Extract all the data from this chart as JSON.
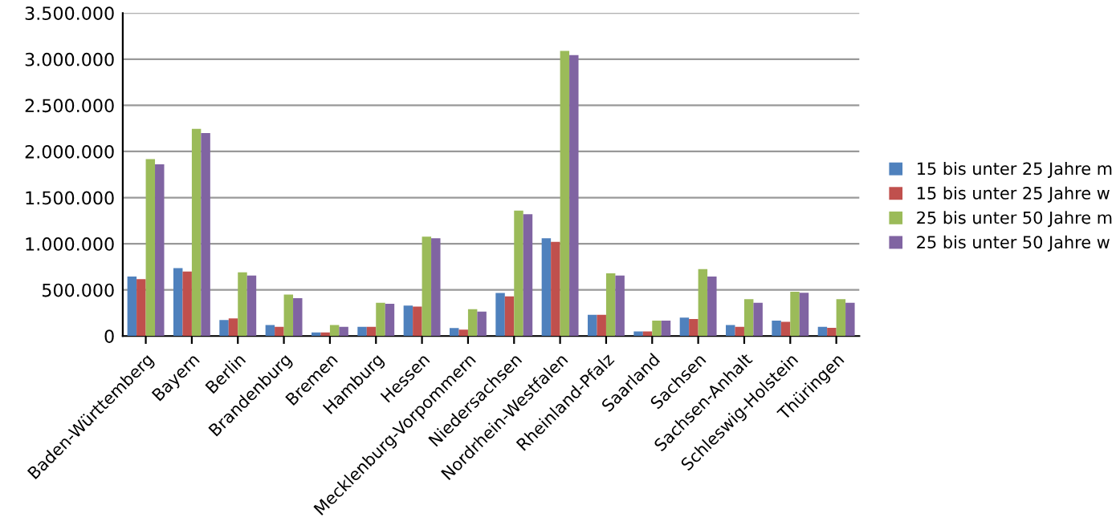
{
  "chart_data": {
    "type": "bar",
    "categories": [
      "Baden-Württemberg",
      "Bayern",
      "Berlin",
      "Brandenburg",
      "Bremen",
      "Hamburg",
      "Hessen",
      "Mecklenburg-Vorpommern",
      "Niedersachsen",
      "Nordrhein-Westfalen",
      "Rheinland-Pfalz",
      "Saarland",
      "Sachsen",
      "Sachsen-Anhalt",
      "Schleswig-Holstein",
      "Thüringen"
    ],
    "series": [
      {
        "name": "15 bis unter 25 Jahre m",
        "color": "#4f81bd",
        "values": [
          645000,
          737000,
          173000,
          120000,
          40000,
          100000,
          330000,
          86000,
          466000,
          1060000,
          230000,
          50000,
          200000,
          120000,
          167000,
          100000
        ]
      },
      {
        "name": "15 bis unter 25 Jahre w",
        "color": "#c0504d",
        "values": [
          616000,
          700000,
          190000,
          100000,
          40000,
          100000,
          320000,
          70000,
          430000,
          1020000,
          230000,
          50000,
          185000,
          100000,
          155000,
          90000
        ]
      },
      {
        "name": "25 bis unter 50 Jahre m",
        "color": "#9bbb59",
        "values": [
          1917000,
          2245000,
          690000,
          450000,
          120000,
          360000,
          1077000,
          290000,
          1360000,
          3090000,
          680000,
          167000,
          725000,
          400000,
          480000,
          400000
        ]
      },
      {
        "name": "25 bis unter 50 Jahre w",
        "color": "#8064a2",
        "values": [
          1860000,
          2200000,
          656000,
          410000,
          100000,
          350000,
          1060000,
          265000,
          1320000,
          3045000,
          656000,
          167000,
          645000,
          360000,
          470000,
          360000
        ]
      }
    ],
    "ylim": [
      0,
      3500000
    ],
    "yticks": [
      {
        "value": 0,
        "label": "0"
      },
      {
        "value": 500000,
        "label": "500.000"
      },
      {
        "value": 1000000,
        "label": "1.000.000"
      },
      {
        "value": 1500000,
        "label": "1.500.000"
      },
      {
        "value": 2000000,
        "label": "2.000.000"
      },
      {
        "value": 2500000,
        "label": "2.500.000"
      },
      {
        "value": 3000000,
        "label": "3.000.000"
      },
      {
        "value": 3500000,
        "label": "3.500.000"
      }
    ],
    "grid": "y",
    "legend": "right"
  }
}
